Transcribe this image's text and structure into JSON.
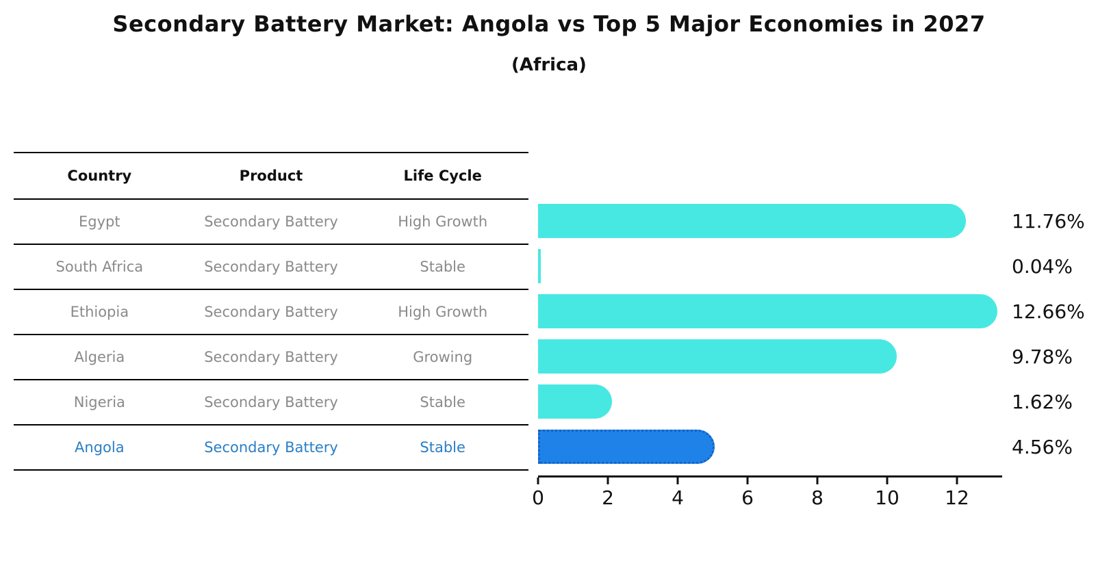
{
  "title": "Secondary Battery Market: Angola vs Top 5 Major Economies in 2027",
  "subtitle": "(Africa)",
  "table": {
    "headers": [
      "Country",
      "Product",
      "Life Cycle"
    ]
  },
  "colors": {
    "bar_default": "#48e8e2",
    "bar_highlight": "#1f82e8",
    "bar_highlight_edge": "#1462c4",
    "table_text": "#8a8a8a",
    "highlight_text": "#2a7ec6",
    "axis_and_labels": "#111111"
  },
  "chart_data": {
    "type": "bar",
    "orientation": "horizontal",
    "title": "Secondary Battery Market: Angola vs Top 5 Major Economies in 2027",
    "subtitle": "(Africa)",
    "xlabel": "",
    "ylabel": "",
    "xlim": [
      0,
      13.3
    ],
    "xticks": [
      0,
      2,
      4,
      6,
      8,
      10,
      12
    ],
    "grid": false,
    "legend": false,
    "rows": [
      {
        "country": "Egypt",
        "product": "Secondary Battery",
        "life_cycle": "High Growth",
        "value": 11.76,
        "label": "11.76%",
        "highlight": false
      },
      {
        "country": "South Africa",
        "product": "Secondary Battery",
        "life_cycle": "Stable",
        "value": 0.04,
        "label": "0.04%",
        "highlight": false
      },
      {
        "country": "Ethiopia",
        "product": "Secondary Battery",
        "life_cycle": "High Growth",
        "value": 12.66,
        "label": "12.66%",
        "highlight": false
      },
      {
        "country": "Algeria",
        "product": "Secondary Battery",
        "life_cycle": "Growing",
        "value": 9.78,
        "label": "9.78%",
        "highlight": false
      },
      {
        "country": "Nigeria",
        "product": "Secondary Battery",
        "life_cycle": "Stable",
        "value": 1.62,
        "label": "1.62%",
        "highlight": false
      },
      {
        "country": "Angola",
        "product": "Secondary Battery",
        "life_cycle": "Stable",
        "value": 4.56,
        "label": "4.56%",
        "highlight": true
      }
    ]
  }
}
